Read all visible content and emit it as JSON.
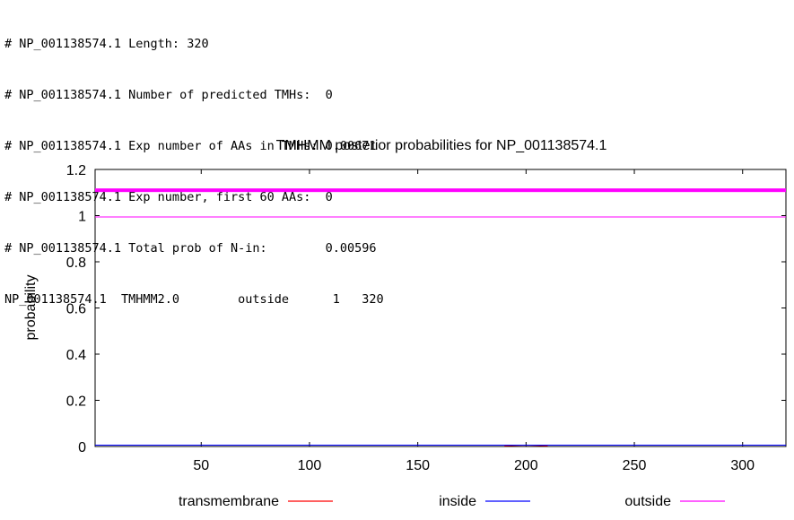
{
  "summary_lines": [
    "# NP_001138574.1 Length: 320",
    "# NP_001138574.1 Number of predicted TMHs:  0",
    "# NP_001138574.1 Exp number of AAs in TMHs: 0.00671",
    "# NP_001138574.1 Exp number, first 60 AAs:  0",
    "# NP_001138574.1 Total prob of N-in:        0.00596",
    "NP_001138574.1  TMHMM2.0        outside      1   320"
  ],
  "chart_data": {
    "type": "line",
    "title": "TMHMM posterior probabilities for NP_001138574.1",
    "xlabel": "",
    "ylabel": "probability",
    "xlim": [
      1,
      320
    ],
    "ylim": [
      0,
      1.2
    ],
    "xticks": [
      "50",
      "100",
      "150",
      "200",
      "250",
      "300"
    ],
    "yticks": [
      "0",
      "0.2",
      "0.4",
      "0.6",
      "0.8",
      "1",
      "1.2"
    ],
    "legend_position": "bottom",
    "series": [
      {
        "name": "transmembrane",
        "color": "#ff0000",
        "segments": [
          [
            190,
            0.003
          ],
          [
            200,
            0.006
          ],
          [
            210,
            0.003
          ]
        ]
      },
      {
        "name": "inside",
        "color": "#0000ff",
        "x": [
          1,
          320
        ],
        "values": [
          0.006,
          0.006
        ]
      },
      {
        "name": "outside",
        "color": "#ff00ff",
        "x": [
          1,
          320
        ],
        "values": [
          0.994,
          0.994
        ]
      }
    ],
    "bands": [
      {
        "label": "outside",
        "color": "#ff00ff",
        "start": 1,
        "end": 320,
        "y": 1.11
      }
    ]
  }
}
